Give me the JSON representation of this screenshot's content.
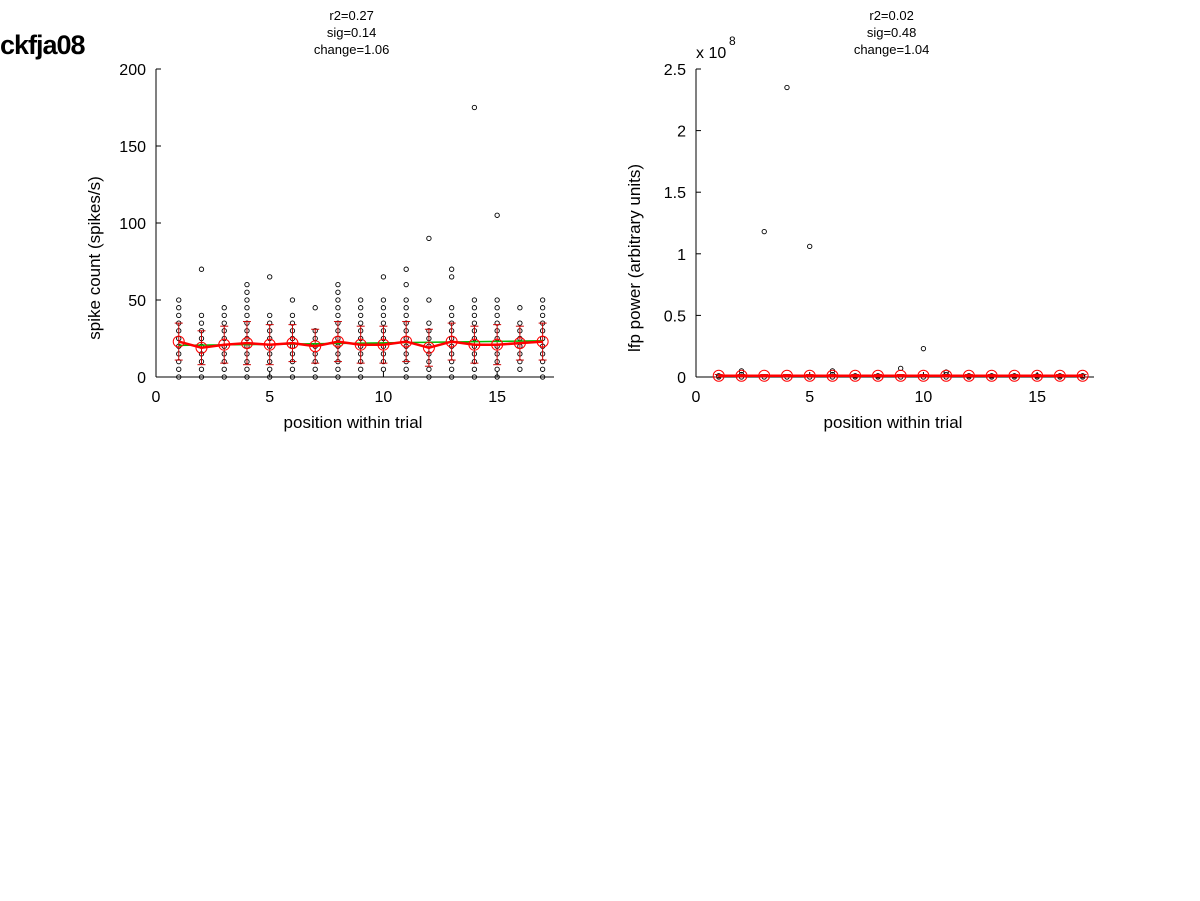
{
  "figure_label": "ckfja08",
  "chart_data": [
    {
      "type": "scatter",
      "title": [
        "r2=0.27",
        "sig=0.14",
        "change=1.06"
      ],
      "xlabel": "position within trial",
      "ylabel": "spike count (spikes/s)",
      "exponent_label": "",
      "xlim": [
        0,
        17.5
      ],
      "ylim": [
        0,
        200
      ],
      "xticks": [
        0,
        5,
        10,
        15
      ],
      "yticks": [
        0,
        50,
        100,
        150,
        200
      ],
      "yticklabels": [
        "0",
        "50",
        "100",
        "150",
        "200"
      ],
      "points": [
        [
          1,
          0
        ],
        [
          1,
          5
        ],
        [
          1,
          10
        ],
        [
          1,
          15
        ],
        [
          1,
          20
        ],
        [
          1,
          25
        ],
        [
          1,
          30
        ],
        [
          1,
          35
        ],
        [
          1,
          40
        ],
        [
          1,
          45
        ],
        [
          1,
          50
        ],
        [
          2,
          0
        ],
        [
          2,
          5
        ],
        [
          2,
          10
        ],
        [
          2,
          15
        ],
        [
          2,
          20
        ],
        [
          2,
          25
        ],
        [
          2,
          30
        ],
        [
          2,
          35
        ],
        [
          2,
          40
        ],
        [
          2,
          70
        ],
        [
          3,
          0
        ],
        [
          3,
          5
        ],
        [
          3,
          10
        ],
        [
          3,
          15
        ],
        [
          3,
          20
        ],
        [
          3,
          25
        ],
        [
          3,
          30
        ],
        [
          3,
          35
        ],
        [
          3,
          40
        ],
        [
          3,
          45
        ],
        [
          4,
          0
        ],
        [
          4,
          5
        ],
        [
          4,
          10
        ],
        [
          4,
          15
        ],
        [
          4,
          20
        ],
        [
          4,
          25
        ],
        [
          4,
          30
        ],
        [
          4,
          35
        ],
        [
          4,
          40
        ],
        [
          4,
          45
        ],
        [
          4,
          50
        ],
        [
          4,
          55
        ],
        [
          4,
          60
        ],
        [
          5,
          0
        ],
        [
          5,
          5
        ],
        [
          5,
          10
        ],
        [
          5,
          15
        ],
        [
          5,
          20
        ],
        [
          5,
          25
        ],
        [
          5,
          30
        ],
        [
          5,
          35
        ],
        [
          5,
          40
        ],
        [
          5,
          65
        ],
        [
          6,
          0
        ],
        [
          6,
          5
        ],
        [
          6,
          10
        ],
        [
          6,
          15
        ],
        [
          6,
          20
        ],
        [
          6,
          25
        ],
        [
          6,
          30
        ],
        [
          6,
          35
        ],
        [
          6,
          40
        ],
        [
          6,
          50
        ],
        [
          7,
          0
        ],
        [
          7,
          5
        ],
        [
          7,
          10
        ],
        [
          7,
          15
        ],
        [
          7,
          20
        ],
        [
          7,
          25
        ],
        [
          7,
          30
        ],
        [
          7,
          45
        ],
        [
          8,
          0
        ],
        [
          8,
          5
        ],
        [
          8,
          10
        ],
        [
          8,
          15
        ],
        [
          8,
          20
        ],
        [
          8,
          25
        ],
        [
          8,
          30
        ],
        [
          8,
          35
        ],
        [
          8,
          40
        ],
        [
          8,
          45
        ],
        [
          8,
          50
        ],
        [
          8,
          55
        ],
        [
          8,
          60
        ],
        [
          9,
          0
        ],
        [
          9,
          5
        ],
        [
          9,
          10
        ],
        [
          9,
          15
        ],
        [
          9,
          20
        ],
        [
          9,
          25
        ],
        [
          9,
          30
        ],
        [
          9,
          35
        ],
        [
          9,
          40
        ],
        [
          9,
          45
        ],
        [
          9,
          50
        ],
        [
          10,
          5
        ],
        [
          10,
          10
        ],
        [
          10,
          15
        ],
        [
          10,
          20
        ],
        [
          10,
          25
        ],
        [
          10,
          30
        ],
        [
          10,
          35
        ],
        [
          10,
          40
        ],
        [
          10,
          45
        ],
        [
          10,
          50
        ],
        [
          10,
          65
        ],
        [
          11,
          0
        ],
        [
          11,
          5
        ],
        [
          11,
          10
        ],
        [
          11,
          15
        ],
        [
          11,
          20
        ],
        [
          11,
          25
        ],
        [
          11,
          30
        ],
        [
          11,
          35
        ],
        [
          11,
          40
        ],
        [
          11,
          45
        ],
        [
          11,
          50
        ],
        [
          11,
          60
        ],
        [
          11,
          70
        ],
        [
          12,
          0
        ],
        [
          12,
          5
        ],
        [
          12,
          10
        ],
        [
          12,
          15
        ],
        [
          12,
          20
        ],
        [
          12,
          25
        ],
        [
          12,
          30
        ],
        [
          12,
          35
        ],
        [
          12,
          50
        ],
        [
          12,
          90
        ],
        [
          13,
          0
        ],
        [
          13,
          5
        ],
        [
          13,
          10
        ],
        [
          13,
          15
        ],
        [
          13,
          20
        ],
        [
          13,
          25
        ],
        [
          13,
          30
        ],
        [
          13,
          35
        ],
        [
          13,
          40
        ],
        [
          13,
          45
        ],
        [
          13,
          65
        ],
        [
          13,
          70
        ],
        [
          14,
          0
        ],
        [
          14,
          5
        ],
        [
          14,
          10
        ],
        [
          14,
          15
        ],
        [
          14,
          20
        ],
        [
          14,
          25
        ],
        [
          14,
          30
        ],
        [
          14,
          35
        ],
        [
          14,
          40
        ],
        [
          14,
          45
        ],
        [
          14,
          50
        ],
        [
          14,
          175
        ],
        [
          15,
          0
        ],
        [
          15,
          5
        ],
        [
          15,
          10
        ],
        [
          15,
          15
        ],
        [
          15,
          20
        ],
        [
          15,
          25
        ],
        [
          15,
          30
        ],
        [
          15,
          35
        ],
        [
          15,
          40
        ],
        [
          15,
          45
        ],
        [
          15,
          50
        ],
        [
          15,
          105
        ],
        [
          16,
          5
        ],
        [
          16,
          10
        ],
        [
          16,
          15
        ],
        [
          16,
          20
        ],
        [
          16,
          25
        ],
        [
          16,
          30
        ],
        [
          16,
          35
        ],
        [
          16,
          45
        ],
        [
          17,
          0
        ],
        [
          17,
          5
        ],
        [
          17,
          10
        ],
        [
          17,
          15
        ],
        [
          17,
          20
        ],
        [
          17,
          25
        ],
        [
          17,
          30
        ],
        [
          17,
          35
        ],
        [
          17,
          40
        ],
        [
          17,
          45
        ],
        [
          17,
          50
        ]
      ],
      "means": [
        [
          1,
          23
        ],
        [
          2,
          19
        ],
        [
          3,
          21
        ],
        [
          4,
          22
        ],
        [
          5,
          21
        ],
        [
          6,
          22
        ],
        [
          7,
          20
        ],
        [
          8,
          23
        ],
        [
          9,
          21
        ],
        [
          10,
          21
        ],
        [
          11,
          23
        ],
        [
          12,
          19
        ],
        [
          13,
          23
        ],
        [
          14,
          21
        ],
        [
          15,
          21
        ],
        [
          16,
          22
        ],
        [
          17,
          23
        ]
      ],
      "errors": [
        12,
        11,
        12,
        14,
        13,
        12,
        11,
        13,
        12,
        12,
        13,
        12,
        12,
        12,
        13,
        11,
        12
      ],
      "fit": [
        [
          1,
          20.5
        ],
        [
          17,
          23.5
        ]
      ],
      "colors": {
        "points": "#000000",
        "means": "#ff0000",
        "errorbars": "#cc0000",
        "fit_line": "#00bb00"
      }
    },
    {
      "type": "scatter",
      "title": [
        "r2=0.02",
        "sig=0.48",
        "change=1.04"
      ],
      "xlabel": "position within trial",
      "ylabel": "lfp power (arbitrary units)",
      "exponent_label": "x 10",
      "exponent_power": "8",
      "xlim": [
        0,
        17.5
      ],
      "ylim": [
        0,
        2.5
      ],
      "xticks": [
        0,
        5,
        10,
        15
      ],
      "yticks": [
        0,
        0.5,
        1,
        1.5,
        2,
        2.5
      ],
      "yticklabels": [
        "0",
        "0.5",
        "1",
        "1.5",
        "2",
        "2.5"
      ],
      "points": [
        [
          1,
          0.0
        ],
        [
          1,
          0.01
        ],
        [
          2,
          0.0
        ],
        [
          2,
          0.02
        ],
        [
          2,
          0.05
        ],
        [
          3,
          0.0
        ],
        [
          3,
          1.18
        ],
        [
          4,
          0.0
        ],
        [
          4,
          2.35
        ],
        [
          5,
          0.0
        ],
        [
          5,
          1.06
        ],
        [
          6,
          0.0
        ],
        [
          6,
          0.02
        ],
        [
          6,
          0.05
        ],
        [
          7,
          0.0
        ],
        [
          7,
          0.01
        ],
        [
          8,
          0.0
        ],
        [
          8,
          0.01
        ],
        [
          9,
          0.0
        ],
        [
          9,
          0.07
        ],
        [
          10,
          0.0
        ],
        [
          10,
          0.23
        ],
        [
          11,
          0.0
        ],
        [
          11,
          0.02
        ],
        [
          11,
          0.04
        ],
        [
          12,
          0.0
        ],
        [
          12,
          0.01
        ],
        [
          13,
          0.0
        ],
        [
          13,
          0.01
        ],
        [
          14,
          0.0
        ],
        [
          14,
          0.01
        ],
        [
          15,
          0.0
        ],
        [
          15,
          0.01
        ],
        [
          16,
          0.0
        ],
        [
          16,
          0.01
        ],
        [
          17,
          0.0
        ],
        [
          17,
          0.01
        ]
      ],
      "means": [
        [
          1,
          0.01
        ],
        [
          2,
          0.01
        ],
        [
          3,
          0.01
        ],
        [
          4,
          0.01
        ],
        [
          5,
          0.01
        ],
        [
          6,
          0.01
        ],
        [
          7,
          0.01
        ],
        [
          8,
          0.01
        ],
        [
          9,
          0.01
        ],
        [
          10,
          0.01
        ],
        [
          11,
          0.01
        ],
        [
          12,
          0.01
        ],
        [
          13,
          0.01
        ],
        [
          14,
          0.01
        ],
        [
          15,
          0.01
        ],
        [
          16,
          0.01
        ],
        [
          17,
          0.01
        ]
      ],
      "errors": [
        0.01,
        0.01,
        0.01,
        0.01,
        0.01,
        0.01,
        0.01,
        0.01,
        0.01,
        0.01,
        0.01,
        0.01,
        0.01,
        0.01,
        0.01,
        0.01,
        0.01
      ],
      "fit": [
        [
          1,
          0.012
        ],
        [
          17,
          0.012
        ]
      ],
      "colors": {
        "points": "#000000",
        "means": "#ff0000",
        "errorbars": "#cc0000",
        "fit_line": "#00bb00"
      }
    }
  ]
}
